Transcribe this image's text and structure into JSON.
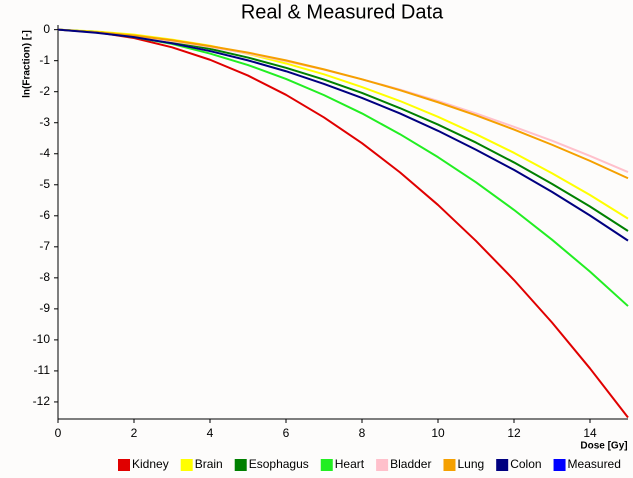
{
  "chart_data": {
    "type": "line",
    "title": "Real & Measured Data",
    "x_label": "Dose [Gy]",
    "y_label": "ln(Fraction) [-]",
    "x": [
      0,
      1,
      2,
      3,
      4,
      5,
      6,
      7,
      8,
      9,
      10,
      11,
      12,
      13,
      14,
      15
    ],
    "xlim": [
      0,
      15
    ],
    "ylim": [
      -12.55,
      0.15
    ],
    "xticks": [
      0,
      2,
      4,
      6,
      8,
      10,
      12,
      14
    ],
    "yticks": [
      0,
      -1,
      -2,
      -3,
      -4,
      -5,
      -6,
      -7,
      -8,
      -9,
      -10,
      -11,
      -12
    ],
    "grid": false,
    "legend": "bottom",
    "series": [
      {
        "name": "Kidney",
        "color": "#e00000",
        "values": [
          0,
          -0.08,
          -0.27,
          -0.57,
          -0.97,
          -1.48,
          -2.1,
          -2.83,
          -3.66,
          -4.6,
          -5.65,
          -6.81,
          -8.07,
          -9.44,
          -10.92,
          -12.5
        ]
      },
      {
        "name": "Brain",
        "color": "#ffff00",
        "values": [
          0,
          -0.06,
          -0.16,
          -0.32,
          -0.52,
          -0.78,
          -1.09,
          -1.44,
          -1.85,
          -2.3,
          -2.81,
          -3.37,
          -3.97,
          -4.63,
          -5.33,
          -6.09
        ]
      },
      {
        "name": "Esophagus",
        "color": "#008000",
        "values": [
          0,
          -0.08,
          -0.21,
          -0.39,
          -0.62,
          -0.9,
          -1.23,
          -1.61,
          -2.04,
          -2.53,
          -3.06,
          -3.64,
          -4.28,
          -4.97,
          -5.7,
          -6.49
        ]
      },
      {
        "name": "Heart",
        "color": "#22ee22",
        "values": [
          0,
          -0.08,
          -0.24,
          -0.46,
          -0.77,
          -1.14,
          -1.59,
          -2.11,
          -2.7,
          -3.37,
          -4.11,
          -4.92,
          -5.81,
          -6.77,
          -7.8,
          -8.91
        ]
      },
      {
        "name": "Bladder",
        "color": "#ffc0cb",
        "values": [
          0,
          -0.09,
          -0.22,
          -0.37,
          -0.56,
          -0.77,
          -1.02,
          -1.29,
          -1.6,
          -1.93,
          -2.3,
          -2.7,
          -3.13,
          -3.58,
          -4.07,
          -4.59
        ]
      },
      {
        "name": "Lung",
        "color": "#f5a000",
        "values": [
          0,
          -0.08,
          -0.19,
          -0.34,
          -0.53,
          -0.74,
          -0.99,
          -1.28,
          -1.6,
          -1.95,
          -2.34,
          -2.76,
          -3.22,
          -3.71,
          -4.23,
          -4.79
        ]
      },
      {
        "name": "Colon",
        "color": "#000080",
        "values": [
          0,
          -0.1,
          -0.24,
          -0.44,
          -0.69,
          -0.99,
          -1.34,
          -1.75,
          -2.2,
          -2.7,
          -3.26,
          -3.87,
          -4.52,
          -5.23,
          -5.99,
          -6.8
        ]
      },
      {
        "name": "Measured",
        "color": "#0000ff",
        "values": [
          null,
          null,
          null,
          null,
          null,
          null,
          null,
          null,
          null,
          null,
          null,
          null,
          null,
          null,
          null,
          null
        ]
      }
    ]
  }
}
